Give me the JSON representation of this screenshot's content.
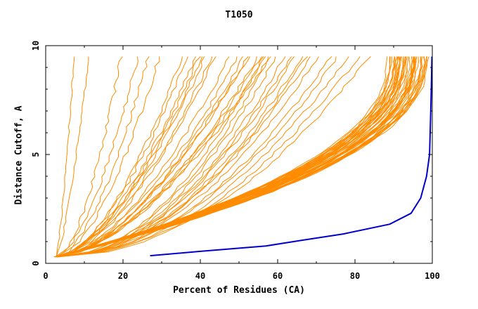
{
  "chart_data": {
    "type": "line",
    "title": "T1050",
    "xlabel": "Percent of Residues (CA)",
    "ylabel": "Distance Cutoff, A",
    "xlim": [
      0,
      100
    ],
    "ylim": [
      0,
      10
    ],
    "x_ticks": [
      "0",
      "20",
      "40",
      "60",
      "80",
      "100"
    ],
    "y_ticks": [
      "0",
      "5",
      "10"
    ],
    "grid": false,
    "colors": {
      "models": "#ff8c00",
      "highlight": "#0000cc",
      "axes": "#000000"
    },
    "highlight_series": {
      "x": [
        27,
        40,
        57,
        66,
        77,
        89,
        94.5,
        97,
        98.5,
        99.3,
        99.6,
        99.8,
        99.9
      ],
      "y": [
        0.35,
        0.55,
        0.8,
        1.05,
        1.35,
        1.8,
        2.3,
        3.0,
        4.0,
        5.0,
        7.0,
        8.5,
        9.5
      ]
    },
    "model_series_families": [
      {
        "count": 2,
        "ends_x": [
          8,
          11
        ],
        "shape": "steep"
      },
      {
        "count": 4,
        "ends_x": [
          20,
          30
        ],
        "shape": "convex"
      },
      {
        "count": 8,
        "ends_x": [
          36,
          44
        ],
        "shape": "convex"
      },
      {
        "count": 9,
        "ends_x": [
          48,
          58
        ],
        "shape": "convex"
      },
      {
        "count": 8,
        "ends_x": [
          57,
          68
        ],
        "shape": "concave"
      },
      {
        "count": 7,
        "ends_x": [
          68,
          84
        ],
        "shape": "concave"
      },
      {
        "count": 45,
        "ends_x": [
          89,
          99
        ],
        "shape": "knee"
      }
    ]
  }
}
